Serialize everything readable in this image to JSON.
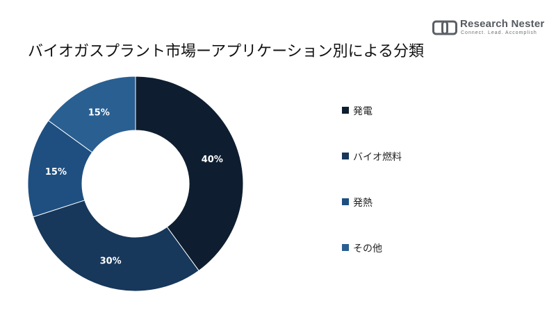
{
  "chart_data": {
    "type": "pie",
    "title": "バイオガスプラント市場ーアプリケーション別による分類",
    "categories": [
      "発電",
      "バイオ燃料",
      "発熱",
      "その他"
    ],
    "values": [
      40,
      30,
      15,
      15
    ],
    "value_labels": [
      "40%",
      "30%",
      "15%",
      "15%"
    ],
    "colors": [
      "#0e1e30",
      "#17375b",
      "#1e4f80",
      "#2a5f92"
    ],
    "donut": true,
    "legend_position": "right",
    "start_angle": "top",
    "direction": "clockwise"
  },
  "logo": {
    "name": "Research Nester",
    "tagline": "Connect. Lead. Accomplish"
  }
}
